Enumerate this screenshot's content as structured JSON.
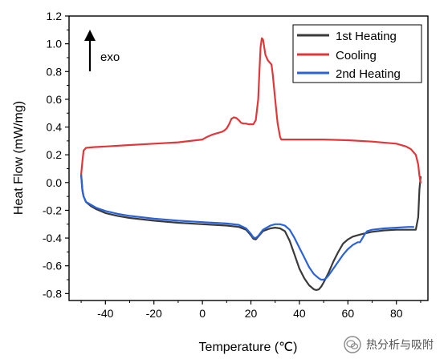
{
  "chart_data": {
    "type": "line",
    "xlabel": "Temperature (℃)",
    "ylabel": "Heat Flow (mW/mg)",
    "xlim": [
      -55,
      93
    ],
    "ylim": [
      -0.85,
      1.2
    ],
    "x_ticks": [
      -40,
      -20,
      0,
      20,
      40,
      60,
      80
    ],
    "y_ticks": [
      -0.8,
      -0.6,
      -0.4,
      -0.2,
      0.0,
      0.2,
      0.4,
      0.6,
      0.8,
      1.0,
      1.2
    ],
    "legend_position": "top-right",
    "annotation": {
      "text": "exo",
      "arrow": "up"
    },
    "grid": false,
    "series": [
      {
        "name": "1st Heating",
        "color": "#3a3a3a",
        "x": [
          -50,
          -49.5,
          -49,
          -48,
          -46,
          -44,
          -40,
          -35,
          -30,
          -20,
          -10,
          0,
          10,
          15,
          18,
          20,
          21,
          22,
          23,
          25,
          28,
          30,
          32,
          34,
          36,
          38,
          40,
          42,
          44,
          46,
          47,
          48,
          49,
          50,
          52,
          54,
          56,
          58,
          60,
          62,
          64,
          66,
          70,
          75,
          80,
          85,
          88,
          89,
          89.5,
          90
        ],
        "y": [
          0.06,
          -0.05,
          -0.1,
          -0.14,
          -0.17,
          -0.19,
          -0.22,
          -0.24,
          -0.255,
          -0.275,
          -0.29,
          -0.3,
          -0.31,
          -0.32,
          -0.34,
          -0.38,
          -0.405,
          -0.41,
          -0.39,
          -0.35,
          -0.33,
          -0.325,
          -0.33,
          -0.35,
          -0.42,
          -0.52,
          -0.62,
          -0.69,
          -0.74,
          -0.77,
          -0.775,
          -0.77,
          -0.75,
          -0.72,
          -0.65,
          -0.57,
          -0.5,
          -0.44,
          -0.41,
          -0.39,
          -0.38,
          -0.37,
          -0.355,
          -0.345,
          -0.34,
          -0.34,
          -0.34,
          -0.25,
          -0.05,
          0.04
        ]
      },
      {
        "name": "Cooling",
        "color": "#e0383a",
        "x": [
          90,
          89.5,
          89,
          88,
          86,
          84,
          80,
          70,
          60,
          50,
          40,
          35,
          33,
          32.5,
          32,
          31,
          30,
          29,
          28.5,
          28,
          27,
          26,
          25,
          24.5,
          24,
          23.5,
          23,
          22,
          21,
          20,
          19,
          18,
          17,
          16,
          15,
          14,
          13,
          12,
          11,
          10,
          9,
          8,
          6,
          4,
          2,
          0,
          -5,
          -10,
          -20,
          -30,
          -40,
          -45,
          -48,
          -49,
          -49.5,
          -50
        ],
        "y": [
          0.0,
          0.05,
          0.13,
          0.2,
          0.24,
          0.26,
          0.28,
          0.295,
          0.305,
          0.31,
          0.31,
          0.31,
          0.31,
          0.31,
          0.33,
          0.43,
          0.6,
          0.78,
          0.85,
          0.86,
          0.88,
          0.92,
          1.03,
          1.04,
          0.98,
          0.8,
          0.6,
          0.45,
          0.42,
          0.42,
          0.42,
          0.425,
          0.425,
          0.43,
          0.45,
          0.465,
          0.47,
          0.46,
          0.42,
          0.39,
          0.375,
          0.365,
          0.355,
          0.345,
          0.33,
          0.31,
          0.3,
          0.29,
          0.28,
          0.27,
          0.26,
          0.255,
          0.25,
          0.23,
          0.15,
          0.06
        ]
      },
      {
        "name": "2nd Heating",
        "color": "#2b63d6",
        "x": [
          -50,
          -49.5,
          -49,
          -48,
          -46,
          -44,
          -40,
          -35,
          -30,
          -20,
          -10,
          0,
          10,
          15,
          18,
          20,
          21,
          22,
          23,
          25,
          28,
          30,
          32,
          34,
          36,
          38,
          40,
          42,
          44,
          46,
          48,
          49,
          50,
          51,
          52,
          54,
          56,
          58,
          60,
          62,
          64,
          65,
          66,
          67,
          68,
          70,
          75,
          80,
          85,
          87
        ],
        "y": [
          0.05,
          -0.06,
          -0.1,
          -0.14,
          -0.16,
          -0.18,
          -0.205,
          -0.225,
          -0.24,
          -0.26,
          -0.275,
          -0.285,
          -0.295,
          -0.305,
          -0.33,
          -0.37,
          -0.395,
          -0.4,
          -0.385,
          -0.34,
          -0.31,
          -0.3,
          -0.3,
          -0.31,
          -0.34,
          -0.4,
          -0.47,
          -0.54,
          -0.61,
          -0.66,
          -0.69,
          -0.7,
          -0.7,
          -0.69,
          -0.67,
          -0.62,
          -0.57,
          -0.52,
          -0.48,
          -0.45,
          -0.43,
          -0.43,
          -0.4,
          -0.37,
          -0.35,
          -0.34,
          -0.33,
          -0.325,
          -0.32,
          -0.32
        ]
      }
    ]
  },
  "watermark": {
    "text": "热分析与吸附"
  }
}
